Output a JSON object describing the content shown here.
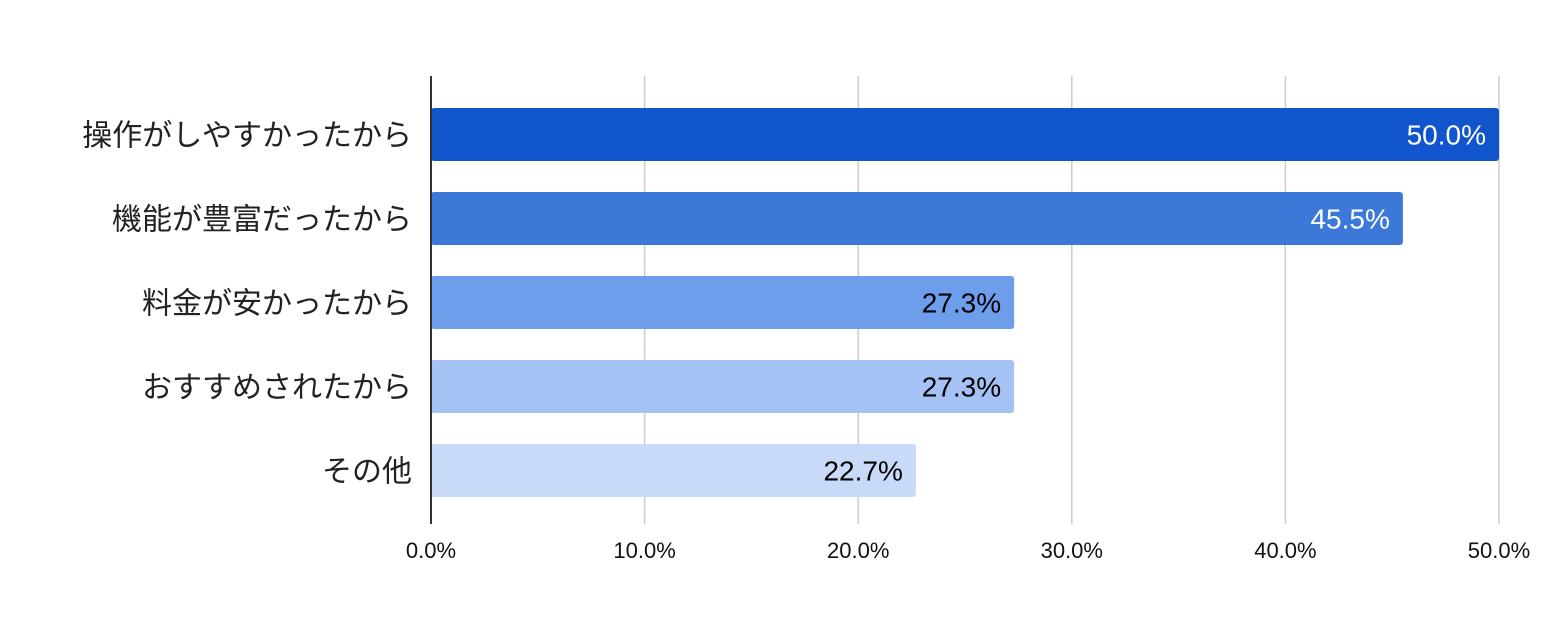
{
  "chart_data": {
    "type": "bar",
    "orientation": "horizontal",
    "title": "",
    "xlabel": "",
    "ylabel": "",
    "categories": [
      "操作がしやすかったから",
      "機能が豊富だったから",
      "料金が安かったから",
      "おすすめされたから",
      "その他"
    ],
    "values": [
      50.0,
      45.5,
      27.3,
      27.3,
      22.7
    ],
    "data_labels": [
      "50.0%",
      "45.5%",
      "27.3%",
      "27.3%",
      "22.7%"
    ],
    "bar_colors": [
      "#1155cc",
      "#3c78d8",
      "#6d9eeb",
      "#a4c2f4",
      "#c9daf8"
    ],
    "label_colors": [
      "#ffffff",
      "#ffffff",
      "#000000",
      "#000000",
      "#000000"
    ],
    "xlim": [
      0,
      50
    ],
    "x_ticks": [
      0,
      10,
      20,
      30,
      40,
      50
    ],
    "x_tick_labels": [
      "0.0%",
      "10.0%",
      "20.0%",
      "30.0%",
      "40.0%",
      "50.0%"
    ],
    "grid": true,
    "gridline_color": "#cccccc",
    "axis_color": "#333333",
    "legend": "none"
  }
}
